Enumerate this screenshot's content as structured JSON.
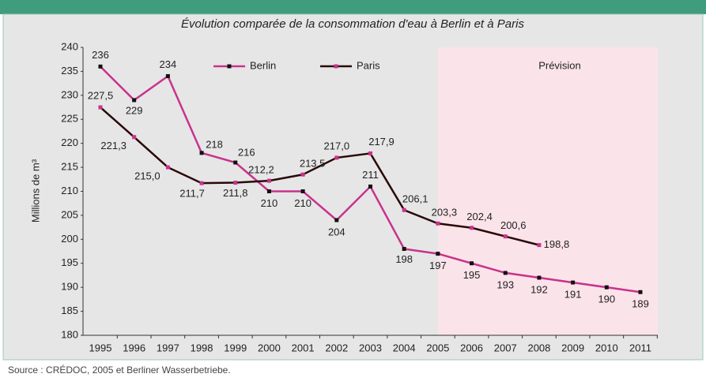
{
  "chart_data": {
    "type": "line",
    "title": "Évolution comparée de la consommation d'eau à Berlin et à Paris",
    "y_label": "Millions de m³",
    "annotation": "Prévision",
    "source": "Source : CRÉDOC, 2005 et Berliner Wasserbetriebe.",
    "shaded_from": "2005",
    "categories": [
      "1995",
      "1996",
      "1997",
      "1998",
      "1999",
      "2000",
      "2001",
      "2002",
      "2003",
      "2004",
      "2005",
      "2006",
      "2007",
      "2008",
      "2009",
      "2010",
      "2011"
    ],
    "series": [
      {
        "name": "Berlin",
        "color": "#c8338c",
        "marker_color": "#111111",
        "values": [
          236,
          229,
          234,
          218,
          216,
          210,
          210,
          204,
          211,
          198,
          197,
          195,
          193,
          192,
          191,
          190,
          189
        ]
      },
      {
        "name": "Paris",
        "color": "#2a0808",
        "marker_color": "#c8338c",
        "values": [
          227.5,
          221.3,
          215.0,
          211.7,
          211.8,
          212.2,
          213.5,
          217.0,
          217.9,
          206.1,
          203.3,
          202.4,
          200.6,
          198.8,
          null,
          null,
          null
        ],
        "value_labels": [
          "227,5",
          "221,3",
          "215,0",
          "211,7",
          "211,8",
          "212,2",
          "213,5",
          "217,0",
          "217,9",
          "206,1",
          "203,3",
          "202,4",
          "200,6",
          "198,8",
          null,
          null,
          null
        ]
      }
    ],
    "ylim": [
      180,
      240
    ],
    "yticks": [
      180,
      185,
      190,
      195,
      200,
      205,
      210,
      215,
      220,
      225,
      230,
      235,
      240
    ]
  }
}
